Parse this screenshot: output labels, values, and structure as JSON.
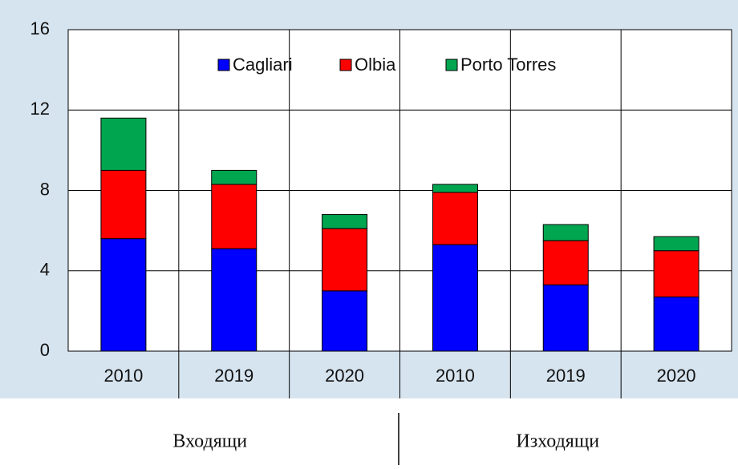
{
  "chart_data": {
    "type": "stacked_bar",
    "categories": [
      "2010",
      "2019",
      "2020",
      "2010",
      "2019",
      "2020"
    ],
    "groups": [
      "Входящи",
      "Изходящи"
    ],
    "series": [
      {
        "name": "Cagliari",
        "color": "#0000ff",
        "values": [
          5.6,
          5.1,
          3.0,
          5.3,
          3.3,
          2.7
        ]
      },
      {
        "name": "Olbia",
        "color": "#ff0000",
        "values": [
          3.4,
          3.2,
          3.1,
          2.6,
          2.2,
          2.3
        ]
      },
      {
        "name": "Porto Torres",
        "color": "#00a550",
        "values": [
          2.6,
          0.7,
          0.7,
          0.4,
          0.8,
          0.7
        ]
      }
    ],
    "ylim": [
      0,
      16
    ],
    "yticks": [
      0,
      4,
      8,
      12,
      16
    ],
    "grid": true,
    "legend": "top"
  }
}
